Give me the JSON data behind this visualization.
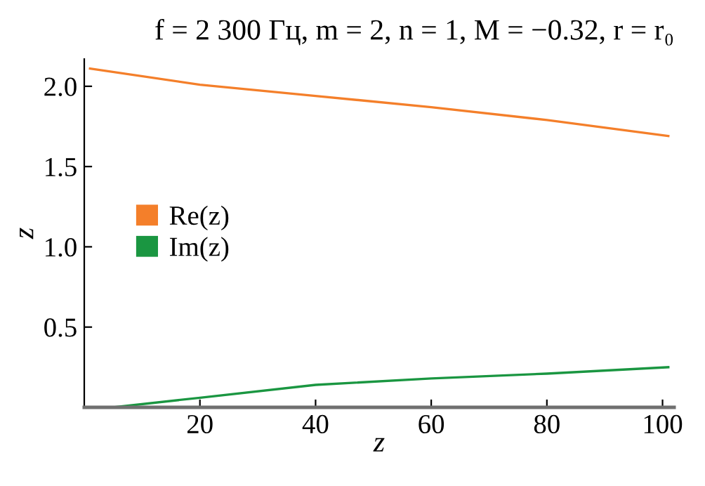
{
  "chart_data": {
    "type": "line",
    "title": "f = 2 300 Гц, m = 2, n = 1, M = −0.32, r = r₀",
    "xlabel": "z",
    "ylabel": "z",
    "series": [
      {
        "name": "Re(z)",
        "color": "#f47f2a",
        "x": [
          1,
          20,
          40,
          60,
          80,
          101
        ],
        "values": [
          2.11,
          2.01,
          1.94,
          1.87,
          1.79,
          1.69
        ]
      },
      {
        "name": "Im(z)",
        "color": "#1a9641",
        "x": [
          5,
          20,
          40,
          60,
          80,
          101
        ],
        "values": [
          0.0,
          0.06,
          0.14,
          0.18,
          0.21,
          0.25
        ]
      }
    ],
    "xlim": [
      0,
      102
    ],
    "xticks": [
      20,
      40,
      60,
      80,
      100
    ],
    "ylim": [
      0,
      2.17
    ],
    "yticks": [
      0.5,
      {
        "value": 1,
        "label": "1.0"
      },
      1.5,
      {
        "value": 2,
        "label": "2.0"
      }
    ],
    "grid": false,
    "legend": "left",
    "marker": "none",
    "line_style": "solid"
  }
}
